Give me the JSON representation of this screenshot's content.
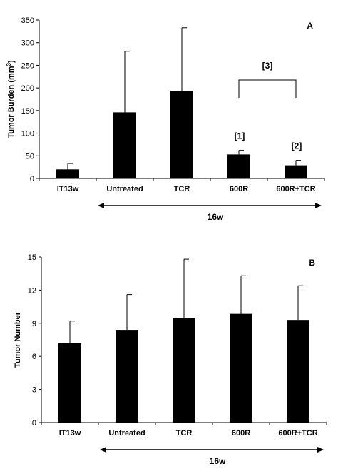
{
  "chart_data": [
    {
      "type": "bar",
      "panel_label": "A",
      "ylabel": "Tumor Burden (mm3)",
      "ylabel_main": "Tumor Burden (mm",
      "ylabel_sup": "3",
      "ylabel_tail": ")",
      "categories": [
        "IT13w",
        "Untreated",
        "TCR",
        "600R",
        "600R+TCR"
      ],
      "values": [
        20,
        146,
        193,
        53,
        29
      ],
      "error_upper": [
        33,
        281,
        333,
        62,
        40
      ],
      "ylim": [
        0,
        350
      ],
      "yticks": [
        0,
        50,
        100,
        150,
        200,
        250,
        300,
        350
      ],
      "bar_color": "#000000",
      "bar_annotations": [
        {
          "category": "600R",
          "text": "[1]"
        },
        {
          "category": "600R+TCR",
          "text": "[2]"
        }
      ],
      "bracket": {
        "from": "600R",
        "to": "600R+TCR",
        "text": "[3]"
      },
      "span_arrow": {
        "from": "Untreated",
        "to": "600R+TCR",
        "text": "16w"
      }
    },
    {
      "type": "bar",
      "panel_label": "B",
      "ylabel": "Tumor Number",
      "categories": [
        "IT13w",
        "Untreated",
        "TCR",
        "600R",
        "600R+TCR"
      ],
      "values": [
        7.2,
        8.4,
        9.5,
        9.85,
        9.3
      ],
      "error_upper": [
        9.2,
        11.6,
        14.8,
        13.3,
        12.4
      ],
      "ylim": [
        0,
        15
      ],
      "yticks": [
        0,
        3,
        6,
        9,
        12,
        15
      ],
      "bar_color": "#000000",
      "span_arrow": {
        "from": "Untreated",
        "to": "600R+TCR",
        "text": "16w"
      }
    }
  ]
}
